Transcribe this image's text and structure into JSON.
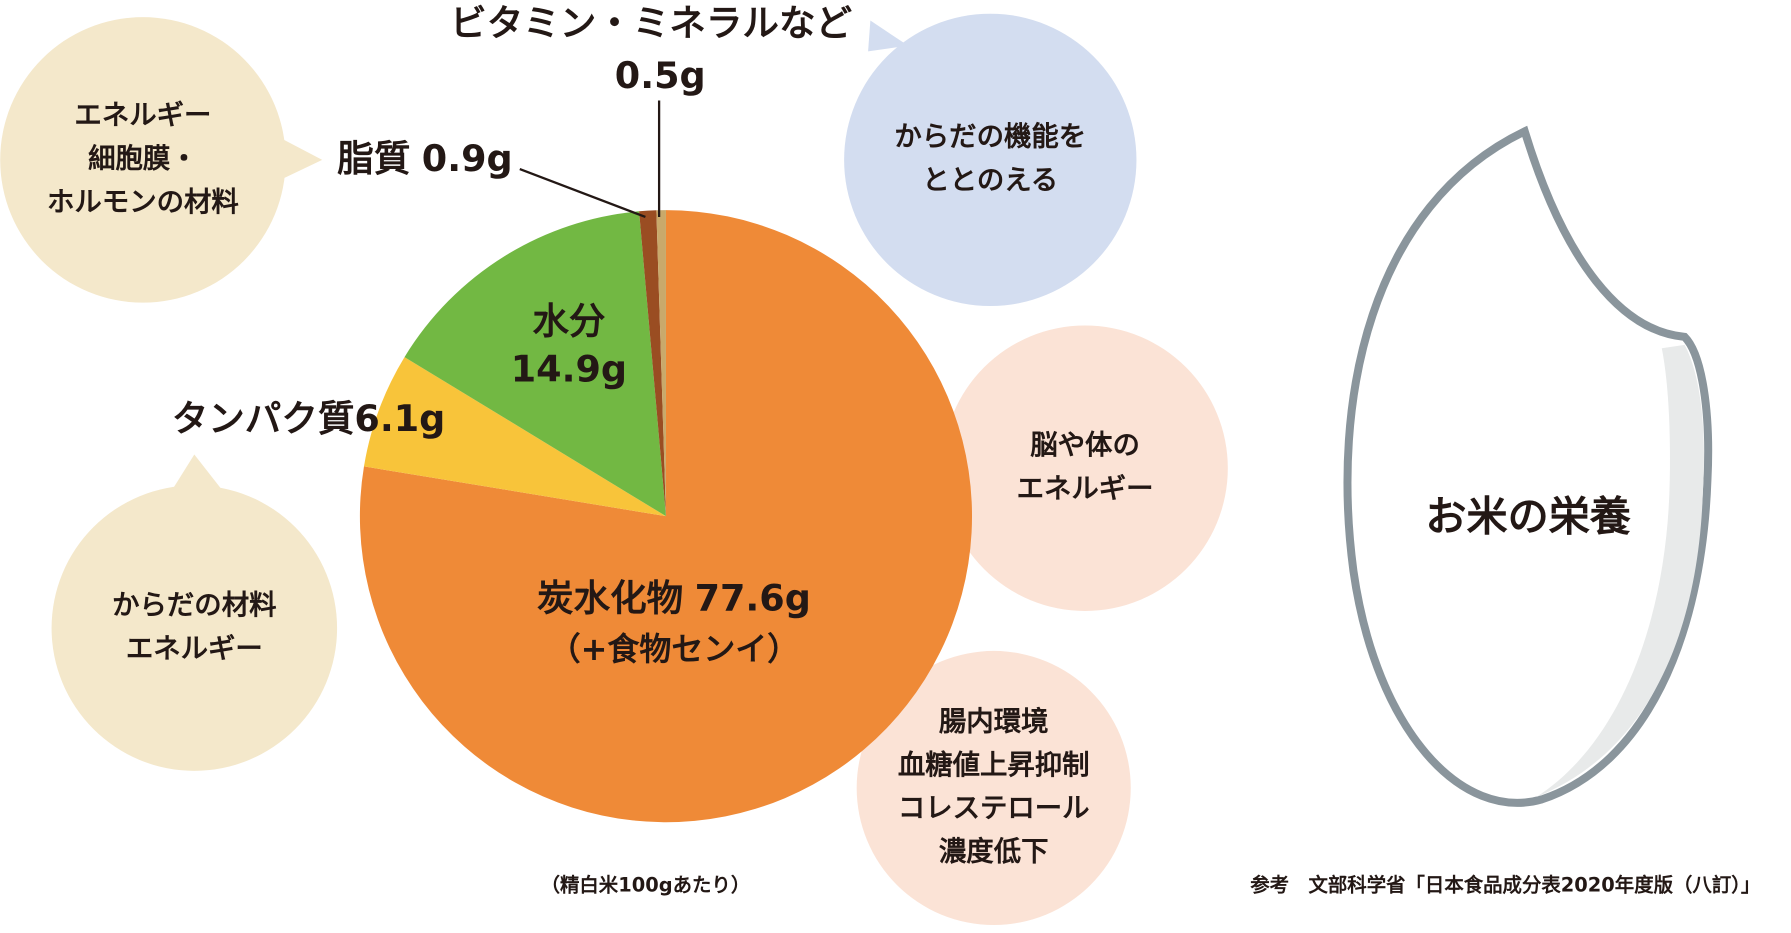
{
  "chart_data": {
    "type": "pie",
    "categories": [
      "炭水化物",
      "タンパク質",
      "水分",
      "脂質",
      "ビタミン・ミネラルなど"
    ],
    "values": [
      77.6,
      6.1,
      14.9,
      0.9,
      0.5
    ],
    "value_labels": [
      "77.6g",
      "6.1g",
      "14.9g",
      "0.9g",
      "0.5g"
    ],
    "colors": [
      "#ef8a37",
      "#f8c43a",
      "#72b843",
      "#9a4d22",
      "#c9a96b"
    ],
    "carbohydrate_note": "（+食物センイ）",
    "bubbles": [
      {
        "color": "#f4e8cb",
        "lines": [
          "エネルギー",
          "細胞膜・",
          "ホルモンの材料"
        ]
      },
      {
        "color": "#d3ddf0",
        "lines": [
          "からだの機能を",
          "ととのえる"
        ]
      },
      {
        "color": "#fbe3d6",
        "lines": [
          "脳や体の",
          "エネルギー"
        ]
      },
      {
        "color": "#fbe3d6",
        "lines": [
          "腸内環境",
          "血糖値上昇抑制",
          "コレステロール",
          "濃度低下"
        ]
      },
      {
        "color": "#f4e8cb",
        "lines": [
          "からだの材料",
          "エネルギー"
        ]
      }
    ],
    "rice_label": "お米の栄養",
    "basis": "（精白米100gあたり）",
    "source": "参考　文部科学省「日本食品成分表2020年度版（八訂）」"
  }
}
